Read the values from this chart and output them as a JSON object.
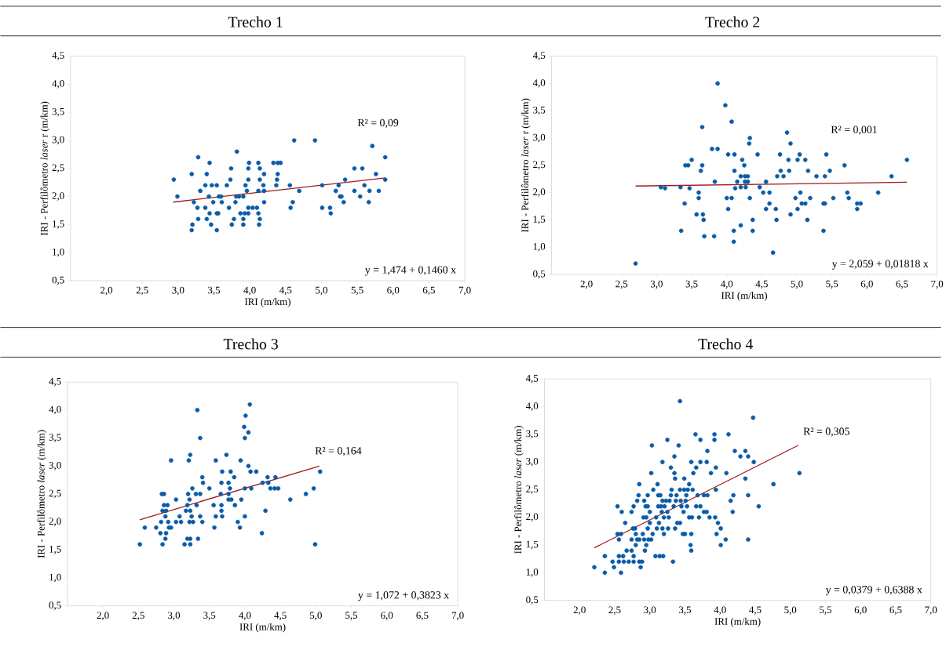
{
  "chart_data": [
    {
      "type": "scatter",
      "title": "Trecho 1",
      "xlabel": "IRI (m/km)",
      "ylabel": "IRI - Perfilômetro *laser* r (m/km)",
      "xlim": [
        1.5,
        7.0
      ],
      "ylim": [
        0.5,
        4.5
      ],
      "xticks": [
        {
          "value": 2.0,
          "label": "2,0"
        },
        {
          "value": 2.5,
          "label": "2,5"
        },
        {
          "value": 3.0,
          "label": "3,0"
        },
        {
          "value": 3.5,
          "label": "3,5"
        },
        {
          "value": 4.0,
          "label": "4,0"
        },
        {
          "value": 4.5,
          "label": "4,5"
        },
        {
          "value": 5.0,
          "label": "5,0"
        },
        {
          "value": 5.5,
          "label": "5,5"
        },
        {
          "value": 6.0,
          "label": "6,0"
        },
        {
          "value": 6.5,
          "label": "6,5"
        },
        {
          "value": 7.0,
          "label": "7,0"
        }
      ],
      "yticks": [
        {
          "value": 0.5,
          "label": "0,5"
        },
        {
          "value": 1.0,
          "label": "1,0"
        },
        {
          "value": 1.5,
          "label": "1,5"
        },
        {
          "value": 2.0,
          "label": "2,0"
        },
        {
          "value": 2.5,
          "label": "2,5"
        },
        {
          "value": 3.0,
          "label": "3,0"
        },
        {
          "value": 3.5,
          "label": "3,5"
        },
        {
          "value": 4.0,
          "label": "4,0"
        },
        {
          "value": 4.5,
          "label": "4,5"
        }
      ],
      "annotations": [
        "R² = 0,09",
        "y = 1,474 + 0,1460 x"
      ],
      "series": [
        {
          "marker": "circle",
          "color": "#0b5ca8",
          "x": [
            2.94,
            2.99,
            3.19,
            3.19,
            3.2,
            3.22,
            3.28,
            3.27,
            3.28,
            3.31,
            3.38,
            3.38,
            3.4,
            3.4,
            3.43,
            3.44,
            3.44,
            3.46,
            3.47,
            3.49,
            3.54,
            3.54,
            3.54,
            3.56,
            3.57,
            3.6,
            3.61,
            3.68,
            3.71,
            3.73,
            3.74,
            3.75,
            3.78,
            3.8,
            3.82,
            3.81,
            3.85,
            3.87,
            3.91,
            3.91,
            3.91,
            3.93,
            3.94,
            3.96,
            3.98,
            3.99,
            3.98,
            3.98,
            3.98,
            4.04,
            4.1,
            4.12,
            4.12,
            4.12,
            4.13,
            4.14,
            4.14,
            4.14,
            4.19,
            4.2,
            4.2,
            4.2,
            4.33,
            4.37,
            4.38,
            4.39,
            4.39,
            4.43,
            4.56,
            4.57,
            4.6,
            4.62,
            4.69,
            4.91,
            5.01,
            5.01,
            5.12,
            5.13,
            5.2,
            5.24,
            5.26,
            5.28,
            5.31,
            5.33,
            5.46,
            5.46,
            5.54,
            5.57,
            5.6,
            5.66,
            5.67,
            5.71,
            5.76,
            5.8,
            5.89,
            5.89
          ],
          "values": [
            2.3,
            2.0,
            2.4,
            1.4,
            1.5,
            1.9,
            2.7,
            1.8,
            1.6,
            2.1,
            2.2,
            1.8,
            2.4,
            1.6,
            2.0,
            2.6,
            1.7,
            1.5,
            2.2,
            1.9,
            2.2,
            1.7,
            1.4,
            1.7,
            2.0,
            2.0,
            1.9,
            2.2,
            1.8,
            2.3,
            2.5,
            1.5,
            1.6,
            1.9,
            2.8,
            2.0,
            2.0,
            1.7,
            2.0,
            1.6,
            1.5,
            1.7,
            2.2,
            2.1,
            2.5,
            2.6,
            2.3,
            1.8,
            1.7,
            1.8,
            1.8,
            2.1,
            2.6,
            1.7,
            1.5,
            1.6,
            2.5,
            2.3,
            2.2,
            2.4,
            2.1,
            1.9,
            2.6,
            2.2,
            2.3,
            2.4,
            2.6,
            2.6,
            2.2,
            1.8,
            1.9,
            3.0,
            2.1,
            3.0,
            2.2,
            1.8,
            1.8,
            1.7,
            2.1,
            2.2,
            2.0,
            2.0,
            1.9,
            2.3,
            2.5,
            2.1,
            2.0,
            2.5,
            2.2,
            1.9,
            2.1,
            2.9,
            2.4,
            2.1,
            2.7,
            2.3
          ]
        },
        {
          "type": "line",
          "color": "#a01818",
          "x": [
            2.93,
            5.89
          ],
          "values": [
            1.9,
            2.33
          ]
        }
      ]
    },
    {
      "type": "scatter",
      "title": "Trecho 2",
      "xlabel": "IRI (m/km)",
      "ylabel": "IRI - Perfilômetro *laser* r (m/km)",
      "xlim": [
        1.5,
        7.0
      ],
      "ylim": [
        0.5,
        4.5
      ],
      "xticks": [
        {
          "value": 2.0,
          "label": "2,0"
        },
        {
          "value": 2.5,
          "label": "2,5"
        },
        {
          "value": 3.0,
          "label": "3,0"
        },
        {
          "value": 3.5,
          "label": "3,5"
        },
        {
          "value": 4.0,
          "label": "4,0"
        },
        {
          "value": 4.5,
          "label": "4,5"
        },
        {
          "value": 5.0,
          "label": "5,0"
        },
        {
          "value": 5.5,
          "label": "5,5"
        },
        {
          "value": 6.0,
          "label": "6,0"
        },
        {
          "value": 6.5,
          "label": "6,5"
        },
        {
          "value": 7.0,
          "label": "7,0"
        }
      ],
      "yticks": [
        {
          "value": 0.5,
          "label": "0,5"
        },
        {
          "value": 1.0,
          "label": "1,0"
        },
        {
          "value": 1.5,
          "label": "1,5"
        },
        {
          "value": 2.0,
          "label": "2,0"
        },
        {
          "value": 2.5,
          "label": "2,5"
        },
        {
          "value": 3.0,
          "label": "3,0"
        },
        {
          "value": 3.5,
          "label": "3,5"
        },
        {
          "value": 4.0,
          "label": "4,0"
        },
        {
          "value": 4.5,
          "label": "4,5"
        }
      ],
      "annotations": [
        "R² = 0,001",
        "y = 2,059 + 0,01818 x"
      ],
      "series": [
        {
          "marker": "circle",
          "color": "#0b5ca8",
          "x": [
            2.7,
            3.06,
            3.12,
            3.34,
            3.35,
            3.4,
            3.41,
            3.45,
            3.47,
            3.5,
            3.57,
            3.6,
            3.6,
            3.63,
            3.65,
            3.65,
            3.66,
            3.67,
            3.68,
            3.79,
            3.82,
            3.83,
            3.87,
            3.87,
            3.98,
            4.0,
            4.02,
            4.02,
            4.07,
            4.07,
            4.1,
            4.1,
            4.11,
            4.11,
            4.12,
            4.15,
            4.2,
            4.2,
            4.2,
            4.22,
            4.25,
            4.26,
            4.26,
            4.27,
            4.3,
            4.3,
            4.32,
            4.33,
            4.33,
            4.37,
            4.37,
            4.44,
            4.47,
            4.52,
            4.56,
            4.56,
            4.61,
            4.61,
            4.66,
            4.7,
            4.71,
            4.72,
            4.76,
            4.77,
            4.81,
            4.86,
            4.88,
            4.89,
            4.91,
            4.91,
            4.98,
            5.01,
            5.01,
            5.04,
            5.05,
            5.07,
            5.12,
            5.12,
            5.15,
            5.16,
            5.19,
            5.28,
            5.38,
            5.38,
            5.4,
            5.4,
            5.42,
            5.47,
            5.52,
            5.68,
            5.72,
            5.74,
            5.86,
            5.86,
            5.91,
            6.16,
            6.35,
            6.57
          ],
          "values": [
            0.7,
            2.1,
            2.08,
            2.1,
            1.3,
            1.8,
            2.5,
            2.5,
            2.08,
            2.6,
            1.6,
            2.0,
            1.9,
            2.4,
            2.5,
            3.2,
            1.6,
            1.5,
            1.2,
            2.8,
            1.2,
            2.2,
            2.8,
            4.0,
            3.6,
            1.9,
            2.7,
            1.7,
            1.9,
            3.3,
            1.3,
            1.1,
            2.7,
            2.4,
            2.08,
            2.2,
            2.3,
            2.1,
            1.4,
            2.6,
            2.5,
            2.3,
            2.2,
            2.1,
            2.3,
            2.2,
            2.9,
            3.0,
            1.9,
            1.5,
            1.3,
            2.7,
            2.1,
            2.0,
            2.2,
            1.7,
            2.0,
            1.8,
            0.9,
            1.7,
            1.5,
            2.3,
            2.7,
            2.4,
            2.3,
            3.1,
            2.6,
            2.4,
            2.9,
            1.6,
            1.9,
            1.7,
            2.6,
            2.7,
            2.0,
            1.8,
            2.6,
            1.8,
            1.5,
            2.4,
            1.9,
            2.3,
            1.3,
            1.8,
            2.3,
            1.8,
            2.7,
            2.4,
            1.9,
            2.5,
            2.0,
            1.9,
            1.8,
            1.7,
            1.8,
            2.0,
            2.3,
            2.6
          ]
        },
        {
          "type": "line",
          "color": "#a01818",
          "x": [
            2.7,
            6.57
          ],
          "values": [
            2.12,
            2.19
          ]
        }
      ]
    },
    {
      "type": "scatter",
      "title": "Trecho 3",
      "xlabel": "IRI (m/km)",
      "ylabel": "IRI - Perfilômetro *laser* (m/km)",
      "xlim": [
        1.5,
        7.0
      ],
      "ylim": [
        0.5,
        4.5
      ],
      "xticks": [
        {
          "value": 2.0,
          "label": "2,0"
        },
        {
          "value": 2.5,
          "label": "2,5"
        },
        {
          "value": 3.0,
          "label": "3,0"
        },
        {
          "value": 3.5,
          "label": "3,5"
        },
        {
          "value": 4.0,
          "label": "4,0"
        },
        {
          "value": 4.5,
          "label": "4,5"
        },
        {
          "value": 5.0,
          "label": "5,0"
        },
        {
          "value": 5.5,
          "label": "5,5"
        },
        {
          "value": 6.0,
          "label": "6,0"
        },
        {
          "value": 6.5,
          "label": "6,5"
        },
        {
          "value": 7.0,
          "label": "7,0"
        }
      ],
      "yticks": [
        {
          "value": 0.5,
          "label": "0,5"
        },
        {
          "value": 1.0,
          "label": "1,0"
        },
        {
          "value": 1.5,
          "label": "1,5"
        },
        {
          "value": 2.0,
          "label": "2,0"
        },
        {
          "value": 2.5,
          "label": "2,5"
        },
        {
          "value": 3.0,
          "label": "3,0"
        },
        {
          "value": 3.5,
          "label": "3,5"
        },
        {
          "value": 4.0,
          "label": "4,0"
        },
        {
          "value": 4.5,
          "label": "4,5"
        }
      ],
      "annotations": [
        "R² = 0,164",
        "y = 1,072 + 0,3823 x"
      ],
      "series": [
        {
          "marker": "circle",
          "color": "#0b5ca8",
          "x": [
            2.52,
            2.59,
            2.75,
            2.81,
            2.82,
            2.84,
            2.84,
            2.83,
            2.86,
            2.86,
            2.88,
            2.88,
            2.89,
            2.89,
            2.91,
            2.92,
            2.93,
            2.96,
            2.96,
            3.03,
            3.03,
            3.08,
            3.1,
            3.15,
            3.17,
            3.19,
            3.19,
            3.2,
            3.21,
            3.22,
            3.23,
            3.23,
            3.23,
            3.23,
            3.25,
            3.22,
            3.27,
            3.26,
            3.31,
            3.32,
            3.34,
            3.33,
            3.37,
            3.37,
            3.37,
            3.4,
            3.4,
            3.41,
            3.5,
            3.56,
            3.57,
            3.59,
            3.59,
            3.66,
            3.67,
            3.67,
            3.68,
            3.67,
            3.68,
            3.74,
            3.77,
            3.77,
            3.77,
            3.79,
            3.8,
            3.81,
            3.85,
            3.86,
            3.9,
            3.93,
            3.95,
            3.94,
            3.99,
            4.0,
            4.0,
            4.0,
            4.01,
            4.05,
            4.05,
            4.07,
            4.08,
            4.09,
            4.16,
            4.24,
            4.25,
            4.29,
            4.32,
            4.33,
            4.36,
            4.42,
            4.43,
            4.47,
            4.64,
            4.86,
            4.97,
            4.99,
            5.06
          ],
          "values": [
            1.6,
            1.9,
            1.9,
            1.8,
            2.0,
            1.6,
            2.2,
            2.5,
            2.5,
            2.3,
            1.7,
            2.1,
            1.8,
            2.2,
            2.3,
            2.0,
            1.9,
            1.9,
            3.1,
            2.4,
            2.0,
            2.1,
            2.0,
            1.6,
            2.2,
            1.7,
            2.3,
            2.5,
            3.1,
            2.4,
            2.2,
            3.2,
            1.7,
            1.6,
            2.1,
            2.0,
            2.0,
            2.6,
            2.5,
            2.3,
            1.7,
            4.0,
            3.5,
            2.5,
            2.1,
            2.8,
            2.0,
            2.7,
            2.6,
            2.3,
            1.9,
            2.1,
            3.1,
            2.5,
            2.3,
            2.7,
            2.9,
            2.2,
            2.1,
            3.2,
            2.7,
            2.5,
            2.4,
            2.6,
            2.9,
            2.4,
            2.8,
            2.3,
            2.0,
            1.9,
            2.4,
            3.1,
            3.7,
            3.5,
            2.6,
            2.1,
            3.9,
            3.6,
            3.0,
            4.1,
            2.9,
            2.6,
            2.9,
            1.8,
            2.7,
            2.2,
            2.8,
            2.7,
            2.6,
            2.6,
            2.8,
            2.6,
            2.4,
            2.5,
            2.6,
            1.6,
            2.9
          ]
        },
        {
          "type": "line",
          "color": "#a01818",
          "x": [
            2.52,
            5.05
          ],
          "values": [
            2.04,
            3.0
          ]
        }
      ]
    },
    {
      "type": "scatter",
      "title": "Trecho 4",
      "xlabel": "IRI (m/km)",
      "ylabel": "IRI - Perfilômetro *laser* (m/km)",
      "xlim": [
        1.5,
        7.0
      ],
      "ylim": [
        0.5,
        4.5
      ],
      "xticks": [
        {
          "value": 2.0,
          "label": "2,0"
        },
        {
          "value": 2.5,
          "label": "2,5"
        },
        {
          "value": 3.0,
          "label": "3,0"
        },
        {
          "value": 3.5,
          "label": "3,5"
        },
        {
          "value": 4.0,
          "label": "4,0"
        },
        {
          "value": 4.5,
          "label": "4,5"
        },
        {
          "value": 5.0,
          "label": "5,0"
        },
        {
          "value": 5.5,
          "label": "5,5"
        },
        {
          "value": 6.0,
          "label": "6,0"
        },
        {
          "value": 6.5,
          "label": "6,5"
        },
        {
          "value": 7.0,
          "label": "7,0"
        }
      ],
      "yticks": [
        {
          "value": 0.5,
          "label": "0,5"
        },
        {
          "value": 1.0,
          "label": "1,0"
        },
        {
          "value": 1.5,
          "label": "1,5"
        },
        {
          "value": 2.0,
          "label": "2,0"
        },
        {
          "value": 2.5,
          "label": "2,5"
        },
        {
          "value": 3.0,
          "label": "3,0"
        },
        {
          "value": 3.5,
          "label": "3,5"
        },
        {
          "value": 4.0,
          "label": "4,0"
        },
        {
          "value": 4.5,
          "label": "4,5"
        }
      ],
      "annotations": [
        "R² = 0,305",
        "y = 0,0379 + 0,6388 x"
      ],
      "series": [
        {
          "marker": "circle",
          "color": "#0b5ca8",
          "x": [
            2.21,
            2.36,
            2.36,
            2.47,
            2.49,
            2.54,
            2.54,
            2.56,
            2.56,
            2.56,
            2.59,
            2.6,
            2.59,
            2.62,
            2.63,
            2.65,
            2.67,
            2.7,
            2.74,
            2.74,
            2.74,
            2.76,
            2.77,
            2.77,
            2.77,
            2.79,
            2.8,
            2.8,
            2.82,
            2.82,
            2.84,
            2.85,
            2.85,
            2.85,
            2.87,
            2.89,
            2.9,
            2.91,
            2.92,
            2.92,
            2.93,
            2.94,
            2.95,
            2.95,
            2.97,
            2.97,
            2.97,
            2.98,
            3.0,
            3.0,
            3.02,
            3.02,
            3.03,
            3.04,
            3.05,
            3.08,
            3.09,
            3.1,
            3.11,
            3.12,
            3.12,
            3.13,
            3.14,
            3.15,
            3.16,
            3.17,
            3.18,
            3.18,
            3.18,
            3.19,
            3.2,
            3.2,
            3.21,
            3.23,
            3.25,
            3.25,
            3.26,
            3.27,
            3.28,
            3.3,
            3.3,
            3.31,
            3.33,
            3.34,
            3.35,
            3.35,
            3.36,
            3.36,
            3.37,
            3.38,
            3.39,
            3.41,
            3.43,
            3.43,
            3.43,
            3.44,
            3.45,
            3.47,
            3.48,
            3.49,
            3.49,
            3.5,
            3.51,
            3.52,
            3.53,
            3.54,
            3.56,
            3.56,
            3.58,
            3.59,
            3.59,
            3.59,
            3.6,
            3.61,
            3.62,
            3.65,
            3.66,
            3.66,
            3.68,
            3.7,
            3.72,
            3.72,
            3.72,
            3.77,
            3.77,
            3.81,
            3.82,
            3.82,
            3.81,
            3.85,
            3.87,
            3.92,
            3.92,
            3.93,
            3.94,
            3.94,
            3.95,
            3.97,
            4.01,
            4.01,
            4.08,
            4.09,
            4.12,
            4.15,
            4.18,
            4.19,
            4.21,
            4.29,
            4.36,
            4.36,
            4.4,
            4.4,
            4.4,
            4.47,
            4.48,
            4.55,
            4.76,
            5.13
          ],
          "values": [
            1.1,
            1.3,
            1.0,
            1.2,
            1.1,
            2.2,
            1.7,
            1.6,
            1.3,
            1.2,
            1.0,
            2.1,
            1.7,
            1.3,
            1.2,
            1.9,
            1.4,
            1.2,
            2.1,
            1.4,
            1.6,
            1.8,
            1.3,
            2.2,
            1.2,
            1.8,
            1.7,
            1.5,
            2.3,
            1.6,
            2.4,
            2.6,
            1.6,
            1.2,
            1.1,
            1.2,
            1.7,
            2.0,
            2.3,
            1.6,
            1.4,
            2.2,
            1.5,
            2.0,
            2.2,
            2.4,
            1.8,
            1.6,
            1.9,
            2.1,
            2.8,
            1.6,
            3.3,
            1.7,
            2.5,
            1.3,
            2.0,
            1.8,
            2.6,
            2.4,
            2.2,
            1.9,
            1.3,
            2.4,
            2.2,
            2.1,
            2.3,
            1.8,
            3.0,
            1.3,
            1.7,
            2.0,
            2.2,
            2.3,
            3.4,
            2.1,
            1.8,
            2.0,
            2.3,
            2.9,
            2.4,
            2.5,
            1.2,
            2.2,
            3.1,
            2.8,
            1.8,
            2.7,
            2.3,
            2.4,
            1.9,
            3.3,
            4.1,
            2.5,
            1.9,
            2.3,
            2.2,
            1.7,
            2.1,
            2.7,
            2.5,
            1.7,
            2.3,
            2.4,
            2.2,
            2.5,
            2.6,
            2.0,
            1.5,
            1.7,
            3.0,
            1.4,
            2.0,
            2.5,
            2.8,
            3.5,
            2.9,
            2.2,
            2.4,
            2.0,
            3.0,
            2.2,
            3.4,
            2.1,
            2.4,
            2.1,
            2.4,
            3.2,
            3.0,
            2.0,
            2.8,
            3.5,
            3.4,
            2.0,
            2.9,
            2.5,
            1.7,
            1.9,
            1.8,
            1.5,
            1.6,
            2.8,
            3.5,
            2.3,
            2.1,
            2.4,
            3.2,
            3.1,
            3.2,
            2.7,
            3.1,
            2.4,
            1.6,
            3.8,
            3.0,
            2.2,
            2.6,
            2.8
          ]
        },
        {
          "type": "line",
          "color": "#a01818",
          "x": [
            2.21,
            5.11
          ],
          "values": [
            1.45,
            3.3
          ]
        }
      ]
    }
  ]
}
